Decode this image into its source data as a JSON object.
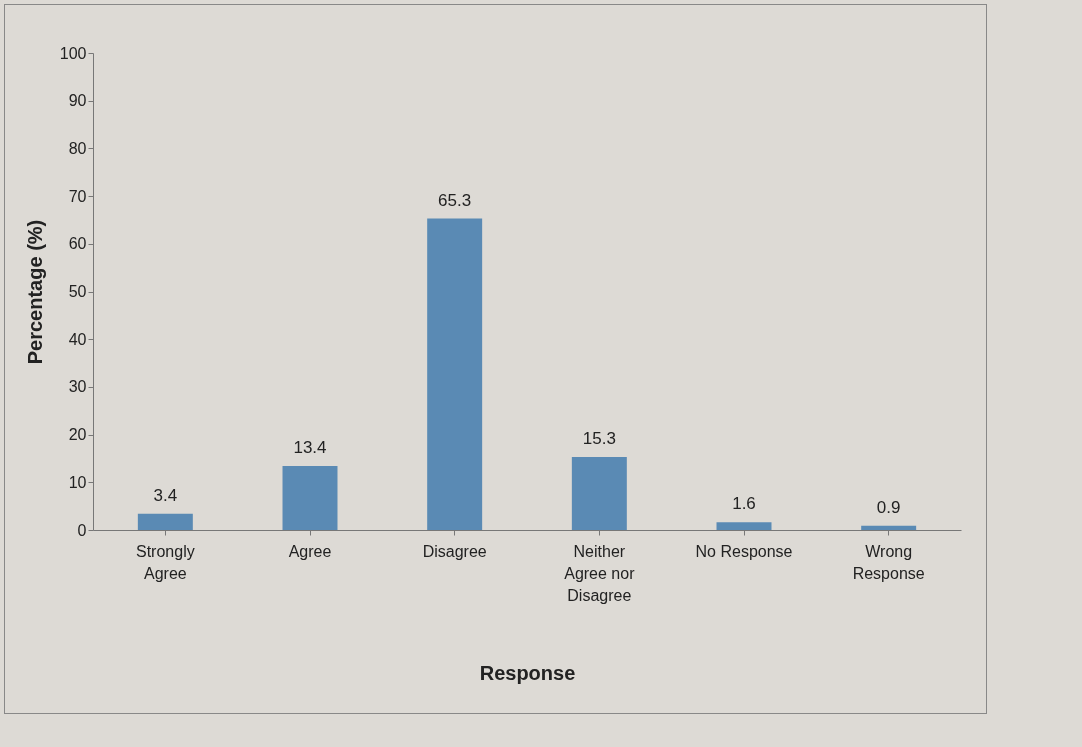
{
  "chart_data": {
    "type": "bar",
    "xlabel": "Response",
    "ylabel": "Percentage (%)",
    "categories": [
      "Strongly Agree",
      "Agree",
      "Disagree",
      "Neither Agree nor Disagree",
      "No Response",
      "Wrong Response"
    ],
    "values": [
      3.4,
      13.4,
      65.3,
      15.3,
      1.6,
      0.9
    ],
    "color": "#5a8ab4",
    "ylim": [
      0,
      100
    ],
    "yticks": [
      0,
      10,
      20,
      30,
      40,
      50,
      60,
      70,
      80,
      90,
      100
    ],
    "grid": false,
    "data_labels": true
  }
}
